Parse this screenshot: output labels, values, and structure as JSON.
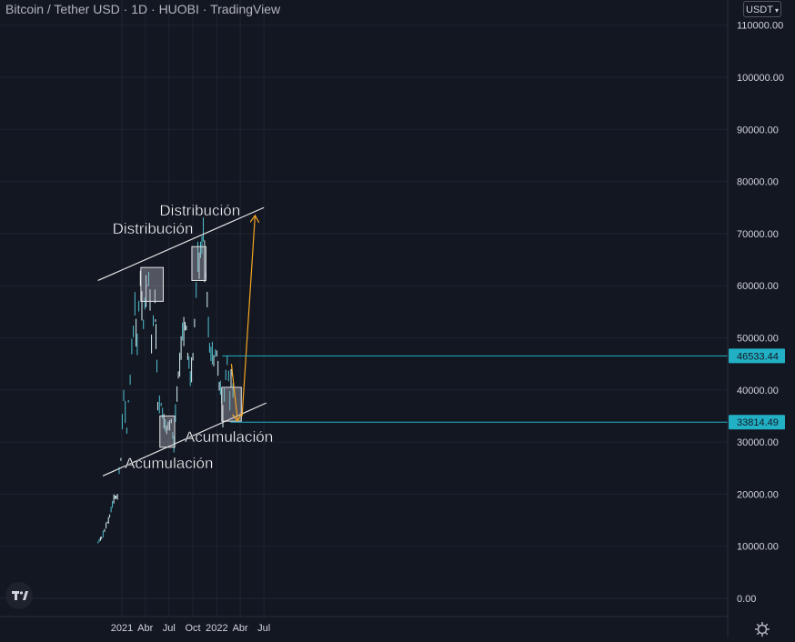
{
  "legend": {
    "title": "Bitcoin / Tether USD · 1D · HUOBI · TradingView"
  },
  "currency": {
    "label": "USDT"
  },
  "colors": {
    "background": "#131722",
    "grid": "#1e2433",
    "candle": "#4fc3d0",
    "candle_light": "#d7f1f4",
    "price_badge": "#22b0c5",
    "trendline": "#e6e6e6",
    "arrow": "#f5a623",
    "box_fill": "#b2b5be",
    "box_stroke": "#e6e6e6",
    "axis_text": "#d1d4dc"
  },
  "icons": {
    "logo": "tradingview-logo-icon",
    "settings": "gear-icon"
  },
  "chart_data": {
    "type": "candlestick",
    "symbol": "Bitcoin / Tether USD",
    "interval": "1D",
    "exchange": "HUOBI",
    "y_ticks": [
      0,
      10000,
      20000,
      30000,
      40000,
      50000,
      60000,
      70000,
      80000,
      90000,
      100000,
      110000
    ],
    "y_tick_labels": [
      "0.00",
      "10000.00",
      "20000.00",
      "30000.00",
      "40000.00",
      "50000.00",
      "60000.00",
      "70000.00",
      "80000.00",
      "90000.00",
      "100000.00",
      "110000.00"
    ],
    "x_tick_labels": [
      {
        "label": "2021",
        "date": "2021-01-01"
      },
      {
        "label": "Abr",
        "date": "2021-04-01"
      },
      {
        "label": "Jul",
        "date": "2021-07-01"
      },
      {
        "label": "Oct",
        "date": "2021-10-01"
      },
      {
        "label": "2022",
        "date": "2022-01-01"
      },
      {
        "label": "Abr",
        "date": "2022-04-01"
      },
      {
        "label": "Jul",
        "date": "2022-07-01"
      }
    ],
    "price_series": [
      {
        "date": "2020-10-01",
        "close": 10800
      },
      {
        "date": "2020-10-15",
        "close": 11400
      },
      {
        "date": "2020-11-01",
        "close": 13800
      },
      {
        "date": "2020-11-15",
        "close": 16000
      },
      {
        "date": "2020-12-01",
        "close": 19000
      },
      {
        "date": "2020-12-15",
        "close": 19800
      },
      {
        "date": "2020-12-28",
        "close": 27000
      },
      {
        "date": "2021-01-08",
        "close": 40000
      },
      {
        "date": "2021-01-20",
        "close": 33000
      },
      {
        "date": "2021-02-08",
        "close": 46000
      },
      {
        "date": "2021-02-20",
        "close": 56000
      },
      {
        "date": "2021-03-01",
        "close": 48000
      },
      {
        "date": "2021-03-13",
        "close": 61000
      },
      {
        "date": "2021-03-25",
        "close": 53000
      },
      {
        "date": "2021-04-14",
        "close": 63500
      },
      {
        "date": "2021-04-25",
        "close": 50000
      },
      {
        "date": "2021-05-08",
        "close": 58000
      },
      {
        "date": "2021-05-12",
        "close": 50000
      },
      {
        "date": "2021-05-19",
        "close": 37000
      },
      {
        "date": "2021-06-01",
        "close": 36000
      },
      {
        "date": "2021-06-22",
        "close": 32000
      },
      {
        "date": "2021-07-10",
        "close": 33500
      },
      {
        "date": "2021-07-20",
        "close": 30000
      },
      {
        "date": "2021-08-01",
        "close": 40000
      },
      {
        "date": "2021-08-22",
        "close": 49000
      },
      {
        "date": "2021-09-06",
        "close": 52000
      },
      {
        "date": "2021-09-21",
        "close": 41000
      },
      {
        "date": "2021-10-01",
        "close": 47000
      },
      {
        "date": "2021-10-20",
        "close": 65000
      },
      {
        "date": "2021-11-10",
        "close": 68000
      },
      {
        "date": "2021-11-25",
        "close": 57000
      },
      {
        "date": "2021-12-04",
        "close": 48000
      },
      {
        "date": "2021-12-20",
        "close": 47000
      },
      {
        "date": "2022-01-01",
        "close": 47500
      },
      {
        "date": "2022-01-10",
        "close": 41000
      },
      {
        "date": "2022-01-24",
        "close": 36000
      },
      {
        "date": "2022-02-10",
        "close": 44500
      },
      {
        "date": "2022-02-20",
        "close": 38500
      },
      {
        "date": "2022-03-01",
        "close": 43500
      },
      {
        "date": "2022-03-07",
        "close": 38000
      }
    ],
    "price_lines": [
      {
        "value": 46533.44,
        "label": "46533.44",
        "from_date": "2022-01-22"
      },
      {
        "value": 33814.49,
        "label": "33814.49",
        "from_date": "2022-02-22"
      }
    ],
    "trendlines": [
      {
        "name": "upper-channel",
        "from": {
          "date": "2020-10-01",
          "value": 61000
        },
        "to": {
          "date": "2022-07-01",
          "value": 75000
        }
      },
      {
        "name": "lower-channel",
        "from": {
          "date": "2020-10-20",
          "value": 23500
        },
        "to": {
          "date": "2022-07-10",
          "value": 37500
        }
      }
    ],
    "zones": [
      {
        "name": "distribucion-1",
        "from_date": "2021-03-15",
        "to_date": "2021-06-09",
        "low": 57000,
        "high": 63500
      },
      {
        "name": "acumulacion-1",
        "from_date": "2021-05-27",
        "to_date": "2021-07-23",
        "low": 29000,
        "high": 35000
      },
      {
        "name": "distribucion-2",
        "from_date": "2021-09-27",
        "to_date": "2021-11-20",
        "low": 61000,
        "high": 67500
      },
      {
        "name": "acumulacion-2",
        "from_date": "2022-01-20",
        "to_date": "2022-04-05",
        "low": 34000,
        "high": 40500
      }
    ],
    "annotations": [
      {
        "text": "Distribución",
        "date": "2021-04-30",
        "value": 70000
      },
      {
        "text": "Acumulación",
        "date": "2021-07-01",
        "value": 25000
      },
      {
        "text": "Distribución",
        "date": "2021-10-28",
        "value": 73500
      },
      {
        "text": "Acumulación",
        "date": "2022-02-16",
        "value": 30000
      }
    ],
    "projection_arrows": [
      {
        "from": {
          "date": "2022-02-26",
          "value": 45000
        },
        "to": {
          "date": "2022-03-22",
          "value": 34000
        }
      },
      {
        "from": {
          "date": "2022-04-08",
          "value": 35000
        },
        "to": {
          "date": "2022-05-28",
          "value": 73500
        }
      }
    ]
  }
}
